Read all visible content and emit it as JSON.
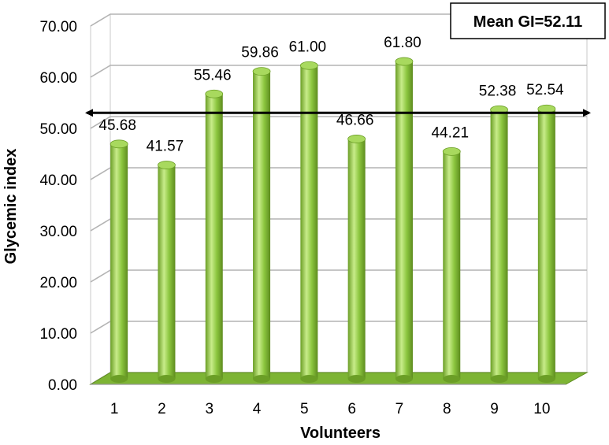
{
  "chart_data": {
    "type": "bar",
    "categories": [
      "1",
      "2",
      "3",
      "4",
      "5",
      "6",
      "7",
      "8",
      "9",
      "10"
    ],
    "values": [
      45.68,
      41.57,
      55.46,
      59.86,
      61.0,
      46.66,
      61.8,
      44.21,
      52.38,
      52.54
    ],
    "value_labels": [
      "45.68",
      "41.57",
      "55.46",
      "59.86",
      "61.00",
      "46.66",
      "61.80",
      "44.21",
      "52.38",
      "52.54"
    ],
    "yticks": [
      "0.00",
      "10.00",
      "20.00",
      "30.00",
      "40.00",
      "50.00",
      "60.00",
      "70.00"
    ],
    "xlabel": "Volunteers",
    "ylabel": "Glycemic index",
    "ylim": [
      0,
      70
    ],
    "grid": true,
    "mean_line": {
      "value": 52.11,
      "label": "Mean GI=52.11",
      "arrows": "both"
    },
    "colors": {
      "bar": "#8cc63f",
      "bar_dark": "#5e8c1f",
      "bar_light": "#c8ec8a",
      "floor": "#7db434",
      "grid": "#b3b3b3"
    }
  }
}
